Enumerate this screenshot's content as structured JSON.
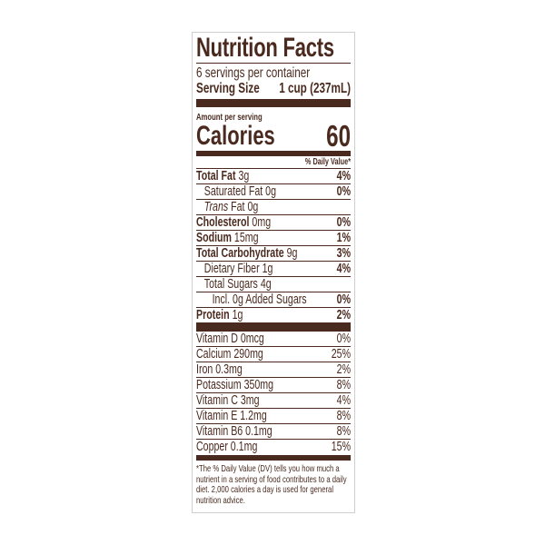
{
  "title": "Nutrition Facts",
  "servings_per_container": "6 servings per container",
  "serving_size_label": "Serving Size",
  "serving_size_value": "1 cup (237mL)",
  "amount_per_serving": "Amount per serving",
  "calories_label": "Calories",
  "calories_value": "60",
  "daily_value_header": "% Daily Value*",
  "nutrients": [
    {
      "name": "Total Fat",
      "amount": "3g",
      "dv": "4%",
      "bold": true,
      "indent": 0
    },
    {
      "name": "Saturated Fat",
      "amount": "0g",
      "dv": "0%",
      "bold": false,
      "indent": 1
    },
    {
      "name": "Trans",
      "amount": "Fat 0g",
      "dv": "",
      "bold": false,
      "indent": 1,
      "italic": true
    },
    {
      "name": "Cholesterol",
      "amount": "0mg",
      "dv": "0%",
      "bold": true,
      "indent": 0
    },
    {
      "name": "Sodium",
      "amount": "15mg",
      "dv": "1%",
      "bold": true,
      "indent": 0
    },
    {
      "name": "Total Carbohydrate",
      "amount": "9g",
      "dv": "3%",
      "bold": true,
      "indent": 0
    },
    {
      "name": "Dietary Fiber",
      "amount": "1g",
      "dv": "4%",
      "bold": false,
      "indent": 1
    },
    {
      "name": "Total Sugars",
      "amount": "4g",
      "dv": "",
      "bold": false,
      "indent": 1
    },
    {
      "name": "Incl. 0g Added Sugars",
      "amount": "",
      "dv": "0%",
      "bold": false,
      "indent": 2
    },
    {
      "name": "Protein",
      "amount": "1g",
      "dv": "2%",
      "bold": true,
      "indent": 0
    }
  ],
  "vitamins": [
    {
      "name": "Vitamin D 0mcg",
      "dv": "0%"
    },
    {
      "name": "Calcium 290mg",
      "dv": "25%"
    },
    {
      "name": "Iron 0.3mg",
      "dv": "2%"
    },
    {
      "name": "Potassium 350mg",
      "dv": "8%"
    },
    {
      "name": "Vitamin C 3mg",
      "dv": "4%"
    },
    {
      "name": "Vitamin E 1.2mg",
      "dv": "8%"
    },
    {
      "name": "Vitamin B6 0.1mg",
      "dv": "8%"
    },
    {
      "name": "Copper 0.1mg",
      "dv": "15%"
    }
  ],
  "footnote": "*The % Daily Value (DV) tells you how much a nutrient in a serving of food contributes to a daily diet. 2,000 calories a day is used for general nutrition advice.",
  "colors": {
    "ink": "#4a2a1f",
    "border": "#cfcfcf"
  }
}
